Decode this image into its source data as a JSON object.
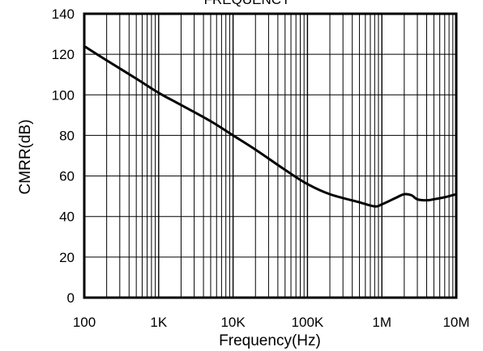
{
  "chart_data": {
    "type": "line",
    "title": "FREQUENCY",
    "xlabel": "Frequency(Hz)",
    "ylabel": "CMRR(dB)",
    "x_scale": "log",
    "xlim": [
      100,
      10000000
    ],
    "ylim": [
      0,
      140
    ],
    "grid": true,
    "x_ticks": [
      100,
      1000,
      10000,
      100000,
      1000000,
      10000000
    ],
    "x_tick_labels": [
      "100",
      "1K",
      "10K",
      "100K",
      "1M",
      "10M"
    ],
    "y_ticks": [
      0,
      20,
      40,
      60,
      80,
      100,
      120,
      140
    ],
    "y_tick_labels": [
      "0",
      "20",
      "40",
      "60",
      "80",
      "100",
      "120",
      "140"
    ],
    "series": [
      {
        "color": "#000000",
        "x": [
          100,
          200,
          500,
          1000,
          2000,
          5000,
          10000,
          20000,
          50000,
          100000,
          200000,
          500000,
          800000,
          1000000,
          1500000,
          2000000,
          2500000,
          3000000,
          4000000,
          5000000,
          7000000,
          10000000
        ],
        "y": [
          124,
          117,
          108,
          101,
          95,
          87,
          80,
          73,
          63,
          56,
          51,
          47,
          45,
          46,
          49,
          51,
          50.5,
          48.5,
          48,
          48.5,
          49.5,
          51
        ]
      }
    ]
  }
}
